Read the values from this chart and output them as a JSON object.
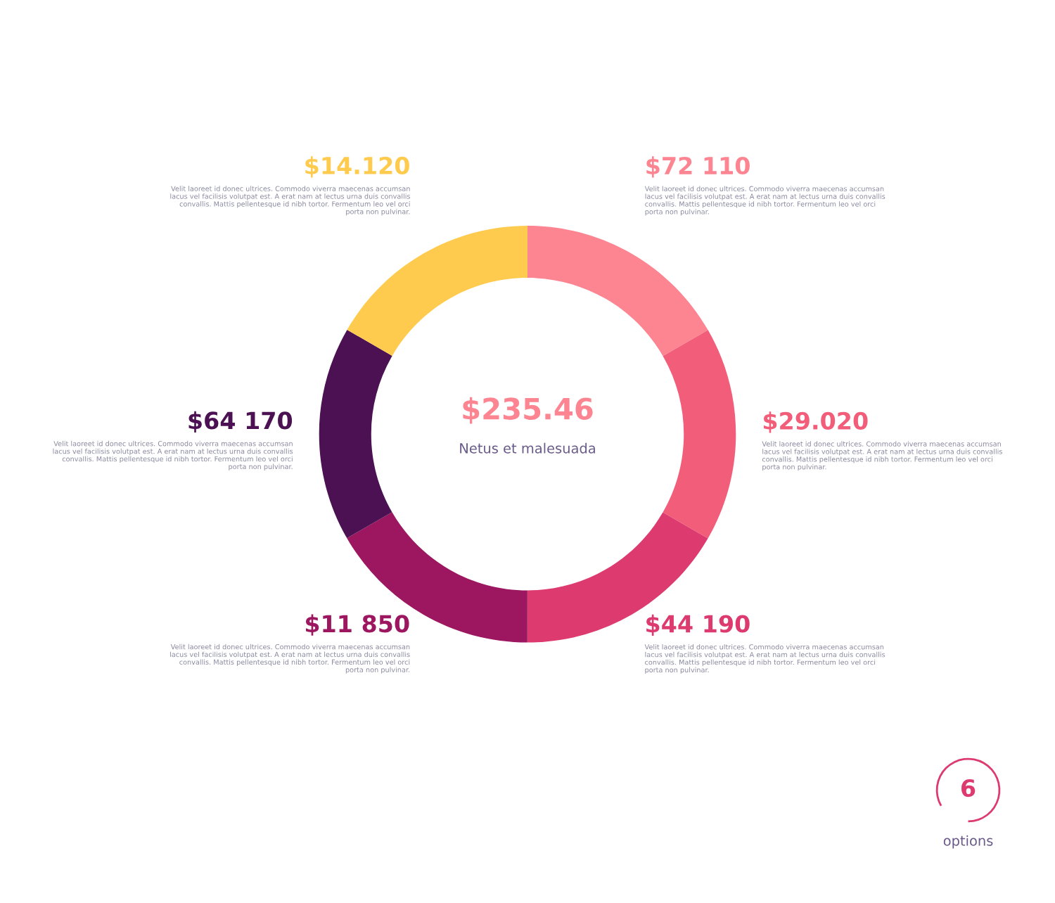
{
  "chart_data": {
    "type": "donut",
    "categories": [
      null,
      null,
      null,
      null,
      null,
      null
    ],
    "values": [
      16.67,
      16.67,
      16.67,
      16.67,
      16.67,
      16.65
    ],
    "colors": [
      "#fd8491",
      "#f25e7a",
      "#dd3a6f",
      "#9c1760",
      "#4b1152",
      "#fecb4e"
    ],
    "annotations": [
      "$235.46",
      "Netus et malesuada",
      "$72 110",
      "$29.020",
      "$44 190",
      "$11 850",
      "$64 170",
      "$14.120",
      "Velit laoreet id donec ultrices. Commodo viverra maecenas accumsan lacus vel facilisis volutpat est. A erat nam at lectus urna duis convallis convallis. Mattis pellentesque id nibh tortor. Fermentum leo vel orci porta non pulvinar.",
      "Velit laoreet id donec ultrices. Commodo viverra maecenas accumsan lacus vel facilisis volutpat est. A erat nam at lectus urna duis convallis convallis. Mattis pellentesque id nibh tortor. Fermentum leo vel orci porta non pulvinar.",
      "Velit laoreet id donec ultrices. Commodo viverra maecenas accumsan lacus vel facilisis volutpat est. A erat nam at lectus urna duis convallis convallis. Mattis pellentesque id nibh tortor. Fermentum leo vel orci porta non pulvinar.",
      "Velit laoreet id donec ultrices. Commodo viverra maecenas accumsan lacus vel facilisis volutpat est. A erat nam at lectus urna duis convallis convallis. Mattis pellentesque id nibh tortor. Fermentum leo vel orci porta non pulvinar.",
      "Velit laoreet id donec ultrices. Commodo viverra maecenas accumsan lacus vel facilisis volutpat est. A erat nam at lectus urna duis convallis convallis. Mattis pellentesque id nibh tortor. Fermentum leo vel orci porta non pulvinar.",
      "Velit laoreet id donec ultrices. Commodo viverra maecenas accumsan lacus vel facilisis volutpat est. A erat nam at lectus urna duis convallis convallis. Mattis pellentesque id nibh tortor. Fermentum leo vel orci porta non pulvinar.",
      "6",
      "options"
    ]
  }
}
